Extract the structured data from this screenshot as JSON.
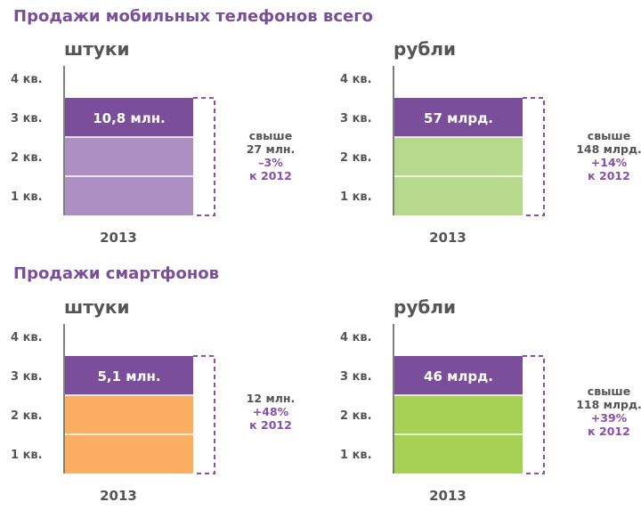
{
  "titles": {
    "all_phones": "Продажи мобильных телефонов всего",
    "smartphones": "Продажи смартфонов"
  },
  "colors": {
    "title": "#7b4e9c",
    "q4_segment": "#7b4e9c",
    "lavender": "#ad8fc4",
    "light_green": "#b6d98c",
    "orange": "#fbae62",
    "bright_green": "#a5d155",
    "dashed_outline": "#8a4fa8"
  },
  "chart_data": [
    {
      "type": "bar",
      "id": "all-units",
      "unit_label": "штуки",
      "categories": [
        "1 кв.",
        "2 кв.",
        "3 кв.",
        "4 кв."
      ],
      "x": [
        "2013"
      ],
      "stack_filled_quarters": [
        "1 кв.",
        "2 кв.",
        "3 кв."
      ],
      "highlighted_quarter": "3 кв.",
      "value_label": "10,8 млн.",
      "base_color": "#ad8fc4",
      "annotation": {
        "line1": "свыше",
        "line2": "27 млн.",
        "line3": "–3%",
        "line4": "к 2012"
      }
    },
    {
      "type": "bar",
      "id": "all-rubles",
      "unit_label": "рубли",
      "categories": [
        "1 кв.",
        "2 кв.",
        "3 кв.",
        "4 кв."
      ],
      "x": [
        "2013"
      ],
      "stack_filled_quarters": [
        "1 кв.",
        "2 кв.",
        "3 кв."
      ],
      "highlighted_quarter": "3 кв.",
      "value_label": "57 млрд.",
      "base_color": "#b6d98c",
      "annotation": {
        "line1": "свыше",
        "line2": "148 млрд.",
        "line3": "+14%",
        "line4": "к 2012"
      }
    },
    {
      "type": "bar",
      "id": "smart-units",
      "unit_label": "штуки",
      "categories": [
        "1 кв.",
        "2 кв.",
        "3 кв.",
        "4 кв."
      ],
      "x": [
        "2013"
      ],
      "stack_filled_quarters": [
        "1 кв.",
        "2 кв.",
        "3 кв."
      ],
      "highlighted_quarter": "3 кв.",
      "value_label": "5,1 млн.",
      "base_color": "#fbae62",
      "annotation": {
        "line1": "",
        "line2": "12 млн.",
        "line3": "+48%",
        "line4": "к 2012"
      }
    },
    {
      "type": "bar",
      "id": "smart-rubles",
      "unit_label": "рубли",
      "categories": [
        "1 кв.",
        "2 кв.",
        "3 кв.",
        "4 кв."
      ],
      "x": [
        "2013"
      ],
      "stack_filled_quarters": [
        "1 кв.",
        "2 кв.",
        "3 кв."
      ],
      "highlighted_quarter": "3 кв.",
      "value_label": "46 млрд.",
      "base_color": "#a5d155",
      "annotation": {
        "line1": "свыше",
        "line2": "118 млрд.",
        "line3": "+39%",
        "line4": "к 2012"
      }
    }
  ]
}
